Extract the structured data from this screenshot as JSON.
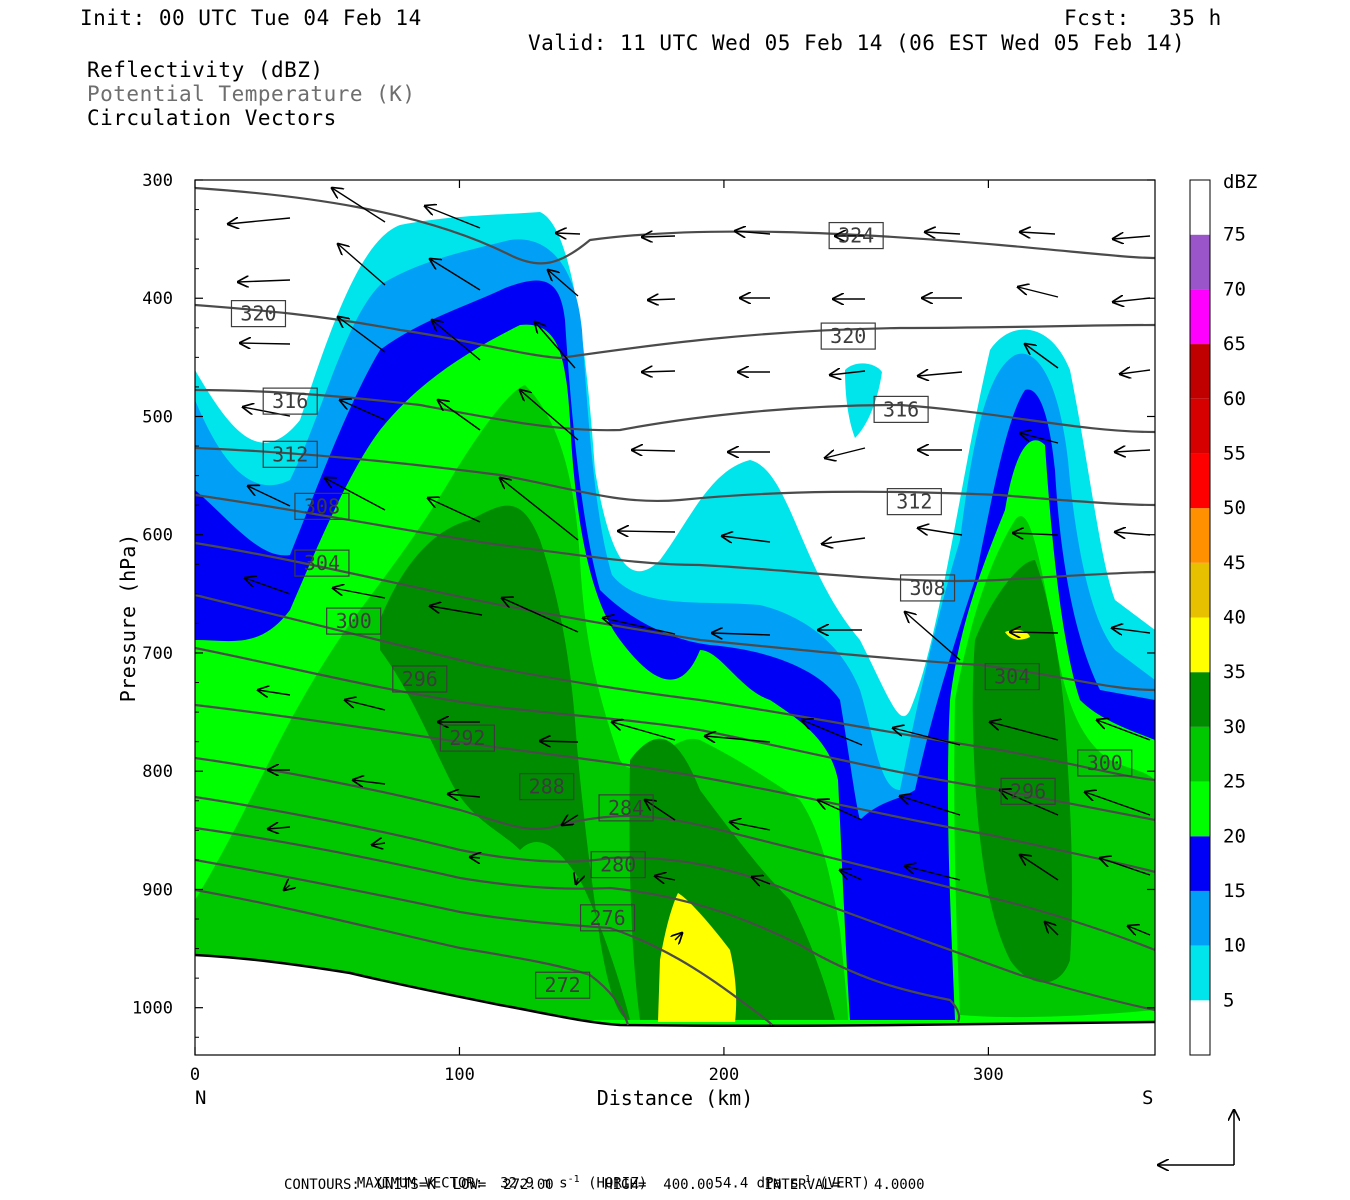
{
  "header": {
    "init": "Init: 00 UTC Tue 04 Feb 14",
    "fcst": "Fcst:   35 h",
    "valid": "Valid: 11 UTC Wed 05 Feb 14 (06 EST Wed 05 Feb 14)"
  },
  "fields": {
    "reflectivity": "Reflectivity (dBZ)",
    "theta": "Potential Temperature (K)",
    "vectors": "Circulation Vectors"
  },
  "footer": {
    "max_vector_label": "MAXIMUM VECTOR:",
    "horiz_value": "32.9 m s",
    "horiz_tag": "(HORIZ)",
    "vert_value": "54.4 dPa s",
    "vert_tag": "(VERT)",
    "neg_exp": "-1",
    "contours": "CONTOURS:  UNITS=K  LOW=  272.00      HIGH=  400.00      INTERVAL=    4.0000"
  },
  "chart_data": {
    "type": "heatmap",
    "xlabel": "Distance (km)",
    "ylabel": "Pressure (hPa)",
    "xlim": [
      0,
      363
    ],
    "ylim": [
      1040,
      300
    ],
    "x_ticks": [
      0,
      100,
      200,
      300
    ],
    "y_ticks": [
      300,
      400,
      500,
      600,
      700,
      800,
      900,
      1000
    ],
    "left_end_label": "N",
    "right_end_label": "S",
    "colorbar": {
      "unit": "dBZ",
      "levels": [
        5,
        10,
        15,
        20,
        25,
        30,
        35,
        40,
        45,
        50,
        55,
        60,
        65,
        70,
        75
      ],
      "colors": [
        "#ffffff",
        "#00e5ec",
        "#01a0f6",
        "#0000f6",
        "#00ff00",
        "#00c800",
        "#008c00",
        "#ffff00",
        "#e7c000",
        "#ff9000",
        "#ff0000",
        "#d60000",
        "#c00000",
        "#ff00ff",
        "#9955c9",
        "#ffffff"
      ]
    },
    "theta_contours": {
      "units": "K",
      "low": 272,
      "high": 400,
      "interval": 4,
      "levels": [
        272,
        276,
        280,
        284,
        288,
        292,
        296,
        300,
        304,
        308,
        312,
        316,
        320,
        324
      ]
    },
    "theta_labels": [
      {
        "value": "324",
        "x": 250,
        "p": 347
      },
      {
        "value": "320",
        "x": 24,
        "p": 413
      },
      {
        "value": "320",
        "x": 247,
        "p": 432
      },
      {
        "value": "316",
        "x": 36,
        "p": 487
      },
      {
        "value": "316",
        "x": 267,
        "p": 494
      },
      {
        "value": "312",
        "x": 36,
        "p": 532
      },
      {
        "value": "312",
        "x": 272,
        "p": 572
      },
      {
        "value": "308",
        "x": 48,
        "p": 576
      },
      {
        "value": "308",
        "x": 277,
        "p": 645
      },
      {
        "value": "304",
        "x": 48,
        "p": 624
      },
      {
        "value": "304",
        "x": 309,
        "p": 720
      },
      {
        "value": "300",
        "x": 60,
        "p": 673
      },
      {
        "value": "300",
        "x": 344,
        "p": 793
      },
      {
        "value": "296",
        "x": 85,
        "p": 722
      },
      {
        "value": "296",
        "x": 315,
        "p": 817
      },
      {
        "value": "292",
        "x": 103,
        "p": 772
      },
      {
        "value": "288",
        "x": 133,
        "p": 813
      },
      {
        "value": "284",
        "x": 163,
        "p": 831
      },
      {
        "value": "280",
        "x": 160,
        "p": 879
      },
      {
        "value": "276",
        "x": 156,
        "p": 924
      },
      {
        "value": "272",
        "x": 139,
        "p": 981
      }
    ],
    "max_vector": {
      "horiz_m_s": 32.9,
      "vert_dPa_s": 54.4
    },
    "reflectivity_maxima_dBZ": 35
  }
}
